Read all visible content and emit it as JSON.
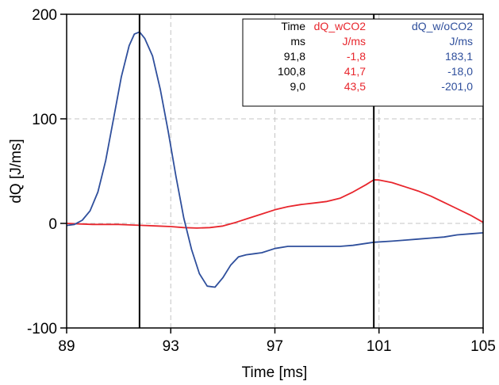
{
  "chart_data": {
    "type": "line",
    "xlabel": "Time [ms]",
    "ylabel": "dQ [J/ms]",
    "xlim": [
      89,
      105
    ],
    "ylim": [
      -100,
      200
    ],
    "x_ticks": [
      "89",
      "93",
      "97",
      "101",
      "105"
    ],
    "y_ticks": [
      "-100",
      "0",
      "100",
      "200"
    ],
    "grid": true,
    "series": [
      {
        "name": "dQ_wCO2",
        "color": "#e8262d",
        "points": [
          [
            89,
            0
          ],
          [
            89.5,
            -0.5
          ],
          [
            90,
            -1
          ],
          [
            90.5,
            -1
          ],
          [
            91,
            -1
          ],
          [
            91.5,
            -1.5
          ],
          [
            92,
            -2
          ],
          [
            92.5,
            -2.5
          ],
          [
            93,
            -3
          ],
          [
            93.5,
            -4
          ],
          [
            94,
            -4.5
          ],
          [
            94.5,
            -4
          ],
          [
            95,
            -2.5
          ],
          [
            95.5,
            1
          ],
          [
            96,
            5
          ],
          [
            96.5,
            9
          ],
          [
            97,
            13
          ],
          [
            97.5,
            16
          ],
          [
            98,
            18
          ],
          [
            98.5,
            19.5
          ],
          [
            99,
            21
          ],
          [
            99.5,
            24
          ],
          [
            100,
            30
          ],
          [
            100.5,
            37
          ],
          [
            100.8,
            41.7
          ],
          [
            101,
            41.5
          ],
          [
            101.5,
            39
          ],
          [
            102,
            35
          ],
          [
            102.5,
            31
          ],
          [
            103,
            26
          ],
          [
            103.5,
            20
          ],
          [
            104,
            14
          ],
          [
            104.5,
            8
          ],
          [
            105,
            1
          ]
        ]
      },
      {
        "name": "dQ_w/oCO2",
        "color": "#2f4f9c",
        "points": [
          [
            89,
            -2
          ],
          [
            89.3,
            -1
          ],
          [
            89.6,
            3
          ],
          [
            89.9,
            12
          ],
          [
            90.2,
            30
          ],
          [
            90.5,
            60
          ],
          [
            90.8,
            100
          ],
          [
            91.1,
            140
          ],
          [
            91.4,
            170
          ],
          [
            91.6,
            181
          ],
          [
            91.8,
            183.1
          ],
          [
            92.0,
            177
          ],
          [
            92.3,
            160
          ],
          [
            92.6,
            128
          ],
          [
            92.9,
            88
          ],
          [
            93.2,
            45
          ],
          [
            93.5,
            5
          ],
          [
            93.8,
            -25
          ],
          [
            94.1,
            -48
          ],
          [
            94.4,
            -60
          ],
          [
            94.7,
            -61
          ],
          [
            95.0,
            -52
          ],
          [
            95.3,
            -40
          ],
          [
            95.6,
            -32
          ],
          [
            95.9,
            -30
          ],
          [
            96.2,
            -29
          ],
          [
            96.5,
            -28
          ],
          [
            97,
            -24
          ],
          [
            97.5,
            -22
          ],
          [
            98,
            -22
          ],
          [
            98.5,
            -22
          ],
          [
            99,
            -22
          ],
          [
            99.5,
            -22
          ],
          [
            100,
            -21
          ],
          [
            100.8,
            -18
          ],
          [
            101.5,
            -17
          ],
          [
            102,
            -16
          ],
          [
            102.5,
            -15
          ],
          [
            103,
            -14
          ],
          [
            103.5,
            -13
          ],
          [
            104,
            -11
          ],
          [
            104.5,
            -10
          ],
          [
            105,
            -9
          ]
        ]
      }
    ],
    "cursors": [
      91.8,
      100.8
    ],
    "cursor_table": {
      "headers": [
        "Time",
        "dQ_wCO2",
        "dQ_w/oCO2"
      ],
      "units": [
        "ms",
        "J/ms",
        "J/ms"
      ],
      "rows": [
        [
          "91,8",
          "-1,8",
          "183,1"
        ],
        [
          "100,8",
          "41,7",
          "-18,0"
        ],
        [
          "9,0",
          "43,5",
          "-201,0"
        ]
      ]
    }
  }
}
